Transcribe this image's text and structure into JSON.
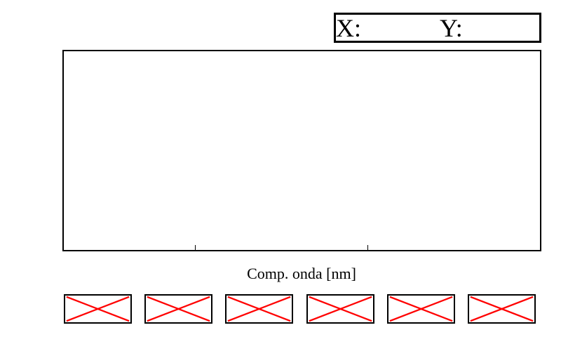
{
  "cursor_readout": {
    "x_label": "X:",
    "x_value": "",
    "y_label": "Y:",
    "y_value": ""
  },
  "chart_data": {
    "type": "line",
    "title": "",
    "xlabel": "Comp. onda [nm]",
    "ylabel": "",
    "series": [],
    "grid": false
  },
  "toolbar": {
    "buttons": [
      {
        "icon": "broken-image-icon"
      },
      {
        "icon": "broken-image-icon"
      },
      {
        "icon": "broken-image-icon"
      },
      {
        "icon": "broken-image-icon"
      },
      {
        "icon": "broken-image-icon"
      },
      {
        "icon": "broken-image-icon"
      }
    ]
  },
  "colors": {
    "frame": "#000000",
    "missing_icon_cross": "#ff0000",
    "background": "#ffffff"
  }
}
